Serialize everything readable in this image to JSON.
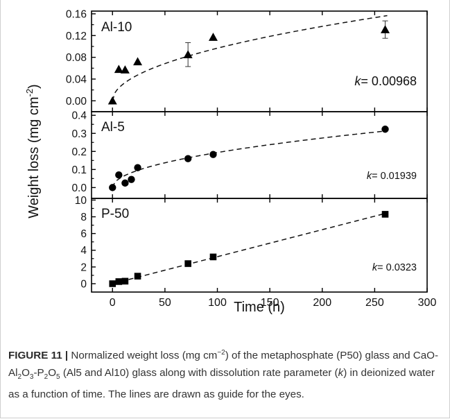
{
  "chart_data": {
    "type": "scatter",
    "xlabel": "Time (h)",
    "ylabel": "Weight loss (mg cm-2)",
    "ylabel_parts": {
      "text": "Weight loss (mg cm",
      "sup": "-2",
      "close": ")"
    },
    "xlim": [
      -20,
      300
    ],
    "xticks": [
      0,
      50,
      100,
      150,
      200,
      250,
      300
    ],
    "panels": [
      {
        "label": "Al-10",
        "annotation_italic": "k",
        "annotation_value": "= 0.00968",
        "marker": "triangle",
        "ylim": [
          -0.02,
          0.165
        ],
        "yticks": [
          0.0,
          0.04,
          0.08,
          0.12,
          0.16
        ],
        "ytick_labels": [
          "0.00",
          "0.04",
          "0.08",
          "0.12",
          "0.16"
        ],
        "points": [
          {
            "x": 0,
            "y": 0.0
          },
          {
            "x": 6,
            "y": 0.058
          },
          {
            "x": 12,
            "y": 0.057
          },
          {
            "x": 24,
            "y": 0.072
          },
          {
            "x": 72,
            "y": 0.085,
            "err": 0.022
          },
          {
            "x": 96,
            "y": 0.117
          },
          {
            "x": 260,
            "y": 0.131,
            "err": 0.016
          }
        ],
        "fit": {
          "a": 0.00968,
          "p": 0.5
        }
      },
      {
        "label": "Al-5",
        "annotation_italic": "k",
        "annotation_value": "= 0.01939",
        "marker": "circle",
        "ylim": [
          -0.06,
          0.42
        ],
        "yticks": [
          0.0,
          0.1,
          0.2,
          0.3,
          0.4
        ],
        "ytick_labels": [
          "0.0",
          "0.1",
          "0.2",
          "0.3",
          "0.4"
        ],
        "points": [
          {
            "x": 0,
            "y": 0.0
          },
          {
            "x": 6,
            "y": 0.07
          },
          {
            "x": 12,
            "y": 0.025
          },
          {
            "x": 18,
            "y": 0.045
          },
          {
            "x": 24,
            "y": 0.11
          },
          {
            "x": 72,
            "y": 0.16
          },
          {
            "x": 96,
            "y": 0.183
          },
          {
            "x": 260,
            "y": 0.323
          }
        ],
        "fit": {
          "a": 0.01939,
          "p": 0.5
        }
      },
      {
        "label": "P-50",
        "annotation_italic": "k",
        "annotation_value": "= 0.0323",
        "marker": "square",
        "ylim": [
          -1.0,
          10.2
        ],
        "yticks": [
          0,
          2,
          4,
          6,
          8,
          10
        ],
        "ytick_labels": [
          "0",
          "2",
          "4",
          "6",
          "8",
          "10"
        ],
        "points": [
          {
            "x": 0,
            "y": 0.0
          },
          {
            "x": 6,
            "y": 0.25
          },
          {
            "x": 12,
            "y": 0.3
          },
          {
            "x": 24,
            "y": 0.9
          },
          {
            "x": 72,
            "y": 2.4
          },
          {
            "x": 96,
            "y": 3.2
          },
          {
            "x": 260,
            "y": 8.3
          }
        ],
        "fit": {
          "a": 0.0323,
          "p": 1
        }
      }
    ]
  },
  "caption": {
    "label": "FIGURE 11 |",
    "segments": [
      {
        "t": " Normalized weight loss (mg cm"
      },
      {
        "t": "−2",
        "s": "sup"
      },
      {
        "t": ") of the metaphosphate (P50) glass and CaO-Al"
      },
      {
        "t": "2",
        "s": "sub"
      },
      {
        "t": "O"
      },
      {
        "t": "3",
        "s": "sub"
      },
      {
        "t": "-P"
      },
      {
        "t": "2",
        "s": "sub"
      },
      {
        "t": "O"
      },
      {
        "t": "5",
        "s": "sub"
      },
      {
        "t": " (Al5 and Al10) glass along with dissolution rate parameter ("
      },
      {
        "t": "k",
        "s": "i"
      },
      {
        "t": ") in deionized water as a function of time. The lines are drawn as guide for the eyes."
      }
    ]
  }
}
